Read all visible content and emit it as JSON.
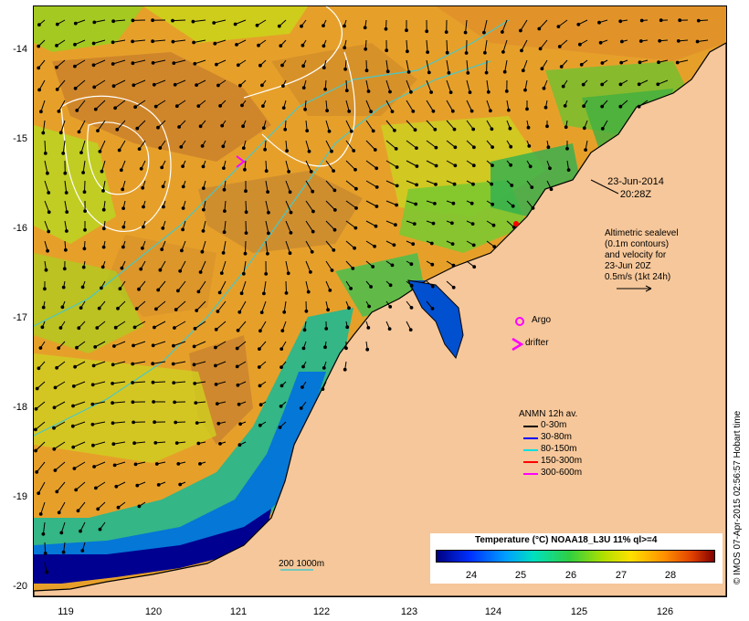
{
  "map": {
    "x_axis_labels": [
      "119",
      "120",
      "121",
      "122",
      "123",
      "124",
      "125",
      "126"
    ],
    "y_axis_labels": [
      "-14",
      "-15",
      "-16",
      "-17",
      "-18",
      "-19",
      "-20"
    ],
    "date_line1": "23-Jun-2014",
    "date_line2": "20:28Z",
    "altimetry_lines": [
      "Altimetric sealevel",
      "(0.1m contours)",
      "and velocity for",
      "23-Jun 20Z",
      "0.5m/s (1kt 24h)"
    ],
    "argo_label": "Argo",
    "drifter_label": "drifter",
    "anmn": {
      "title": "ANMN 12h av.",
      "items": [
        {
          "label": "0-30m",
          "color": "#000000"
        },
        {
          "label": "30-80m",
          "color": "#0000ff"
        },
        {
          "label": "80-150m",
          "color": "#00e0e0"
        },
        {
          "label": "150-300m",
          "color": "#ff0000"
        },
        {
          "label": "300-600m",
          "color": "#ff00ff"
        }
      ]
    },
    "colorbar": {
      "title": "Temperature (°C) NOAA18_L3U 11% ql>=4",
      "ticks": [
        "24",
        "25",
        "26",
        "27",
        "28"
      ]
    },
    "scale_label": "200  1000m",
    "credit": "© IMOS 07-Apr-2015 02:56:57 Hobart time",
    "colors": {
      "land": "#f6c79a",
      "isobath": "#48c8c8",
      "contour": "#ffffff",
      "argo": "#ff00ff"
    }
  }
}
